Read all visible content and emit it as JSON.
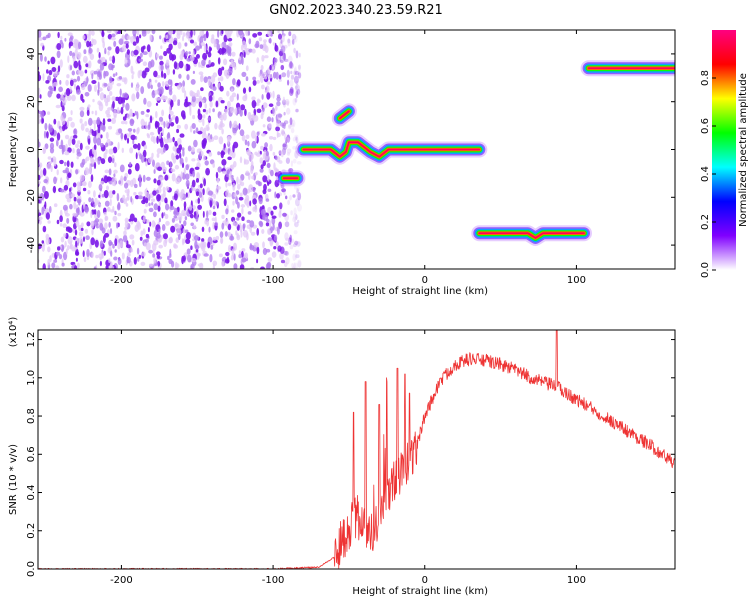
{
  "page_title": "GN02.2023.340.23.59.R21",
  "chart_data": [
    {
      "type": "heatmap",
      "title": "GN02.2023.340.23.59.R21",
      "xlabel": "Height of straight line (km)",
      "ylabel": "Frequency (Hz)",
      "xlim": [
        -255,
        165
      ],
      "ylim": [
        -50,
        50
      ],
      "x_ticks": [
        -200,
        -100,
        0,
        100
      ],
      "y_ticks": [
        40,
        20,
        0,
        -20,
        -40
      ],
      "colorbar": {
        "label": "Normalized spectral amplitude",
        "range": [
          0,
          1
        ],
        "ticks": [
          "0.0",
          "0.2",
          "0.4",
          "0.6",
          "0.8"
        ],
        "colormap": [
          "#ffffff",
          "#8000ff",
          "#0000ff",
          "#00ffff",
          "#00ff00",
          "#ffff00",
          "#ff0000",
          "#ff0080"
        ]
      },
      "noise_region": {
        "x_range": [
          -255,
          -85
        ],
        "y_range": [
          -50,
          50
        ],
        "level": 0.25
      },
      "ridges": [
        {
          "x": [
            -93,
            -84
          ],
          "y": [
            -12,
            -12
          ]
        },
        {
          "x": [
            -80,
            -62,
            -56,
            -52,
            -50,
            -44,
            -40,
            -36,
            -30,
            -24,
            0,
            20,
            36
          ],
          "y": [
            0,
            0,
            -3,
            -1,
            3,
            3,
            1,
            -1,
            -3,
            0,
            0,
            0,
            0
          ]
        },
        {
          "x": [
            -56,
            -50
          ],
          "y": [
            13,
            16
          ]
        },
        {
          "x": [
            36,
            68,
            73,
            78,
            105
          ],
          "y": [
            -35,
            -35,
            -37,
            -35,
            -35
          ]
        },
        {
          "x": [
            108,
            165
          ],
          "y": [
            34,
            34
          ]
        }
      ]
    },
    {
      "type": "line",
      "xlabel": "Height of straight line (km)",
      "ylabel": "SNR (10 * v/v)",
      "y_multiplier": "(x10⁴)",
      "xlim": [
        -255,
        165
      ],
      "ylim": [
        0,
        1.25
      ],
      "x_ticks": [
        -200,
        -100,
        0,
        100
      ],
      "y_ticks": [
        "0.0",
        "0.2",
        "0.4",
        "0.6",
        "0.8",
        "1.0",
        "1.2"
      ],
      "color": "#ee3333",
      "x": [
        -255,
        -150,
        -100,
        -70,
        -60,
        -55,
        -50,
        -45,
        -40,
        -35,
        -30,
        -25,
        -20,
        -15,
        -10,
        -5,
        0,
        10,
        20,
        30,
        40,
        50,
        60,
        70,
        80,
        88,
        95,
        110,
        130,
        150,
        165
      ],
      "y": [
        0.0,
        0.0,
        0.0,
        0.01,
        0.06,
        0.14,
        0.22,
        0.28,
        0.22,
        0.18,
        0.3,
        0.38,
        0.45,
        0.5,
        0.58,
        0.65,
        0.8,
        0.98,
        1.07,
        1.1,
        1.09,
        1.07,
        1.04,
        1.0,
        0.97,
        0.95,
        0.91,
        0.84,
        0.74,
        0.64,
        0.55
      ]
    }
  ]
}
